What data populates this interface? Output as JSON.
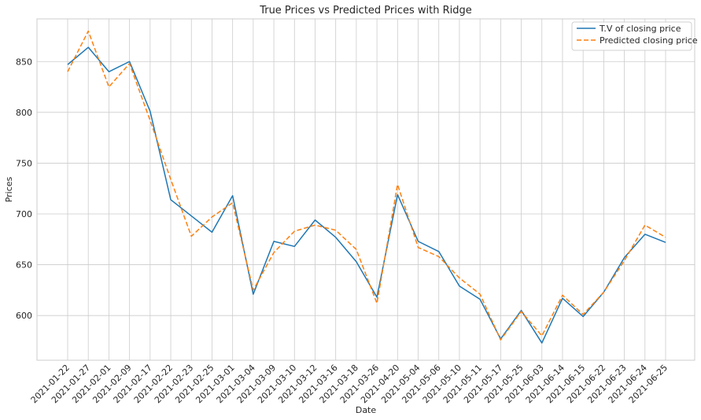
{
  "chart_data": {
    "type": "line",
    "title": "True Prices vs Predicted Prices with Ridge",
    "xlabel": "Date",
    "ylabel": "Prices",
    "categories": [
      "2021-01-22",
      "2021-01-27",
      "2021-02-01",
      "2021-02-09",
      "2021-02-17",
      "2021-02-22",
      "2021-02-23",
      "2021-02-25",
      "2021-03-01",
      "2021-03-04",
      "2021-03-09",
      "2021-03-10",
      "2021-03-12",
      "2021-03-16",
      "2021-03-18",
      "2021-03-26",
      "2021-04-20",
      "2021-05-04",
      "2021-05-06",
      "2021-05-10",
      "2021-05-11",
      "2021-05-17",
      "2021-05-25",
      "2021-06-03",
      "2021-06-14",
      "2021-06-15",
      "2021-06-22",
      "2021-06-23",
      "2021-06-24",
      "2021-06-25"
    ],
    "ylim": [
      556,
      892
    ],
    "yticks": [
      600,
      650,
      700,
      750,
      800,
      850
    ],
    "grid": true,
    "legend_position": "upper-right",
    "series": [
      {
        "name": "T.V of closing price",
        "color": "#1f77b4",
        "style": "solid",
        "values": [
          847,
          864,
          840,
          850,
          801,
          714,
          698,
          682,
          718,
          621,
          673,
          668,
          694,
          677,
          653,
          618,
          719,
          673,
          663,
          629,
          616,
          577,
          605,
          573,
          617,
          599,
          623,
          657,
          680,
          672
        ]
      },
      {
        "name": "Predicted closing price",
        "color": "#ff7f0e",
        "style": "dashed",
        "values": [
          840,
          880,
          825,
          848,
          792,
          734,
          678,
          697,
          711,
          625,
          662,
          683,
          689,
          684,
          665,
          612,
          729,
          667,
          658,
          637,
          621,
          576,
          604,
          580,
          620,
          601,
          623,
          654,
          689,
          677
        ]
      }
    ]
  }
}
